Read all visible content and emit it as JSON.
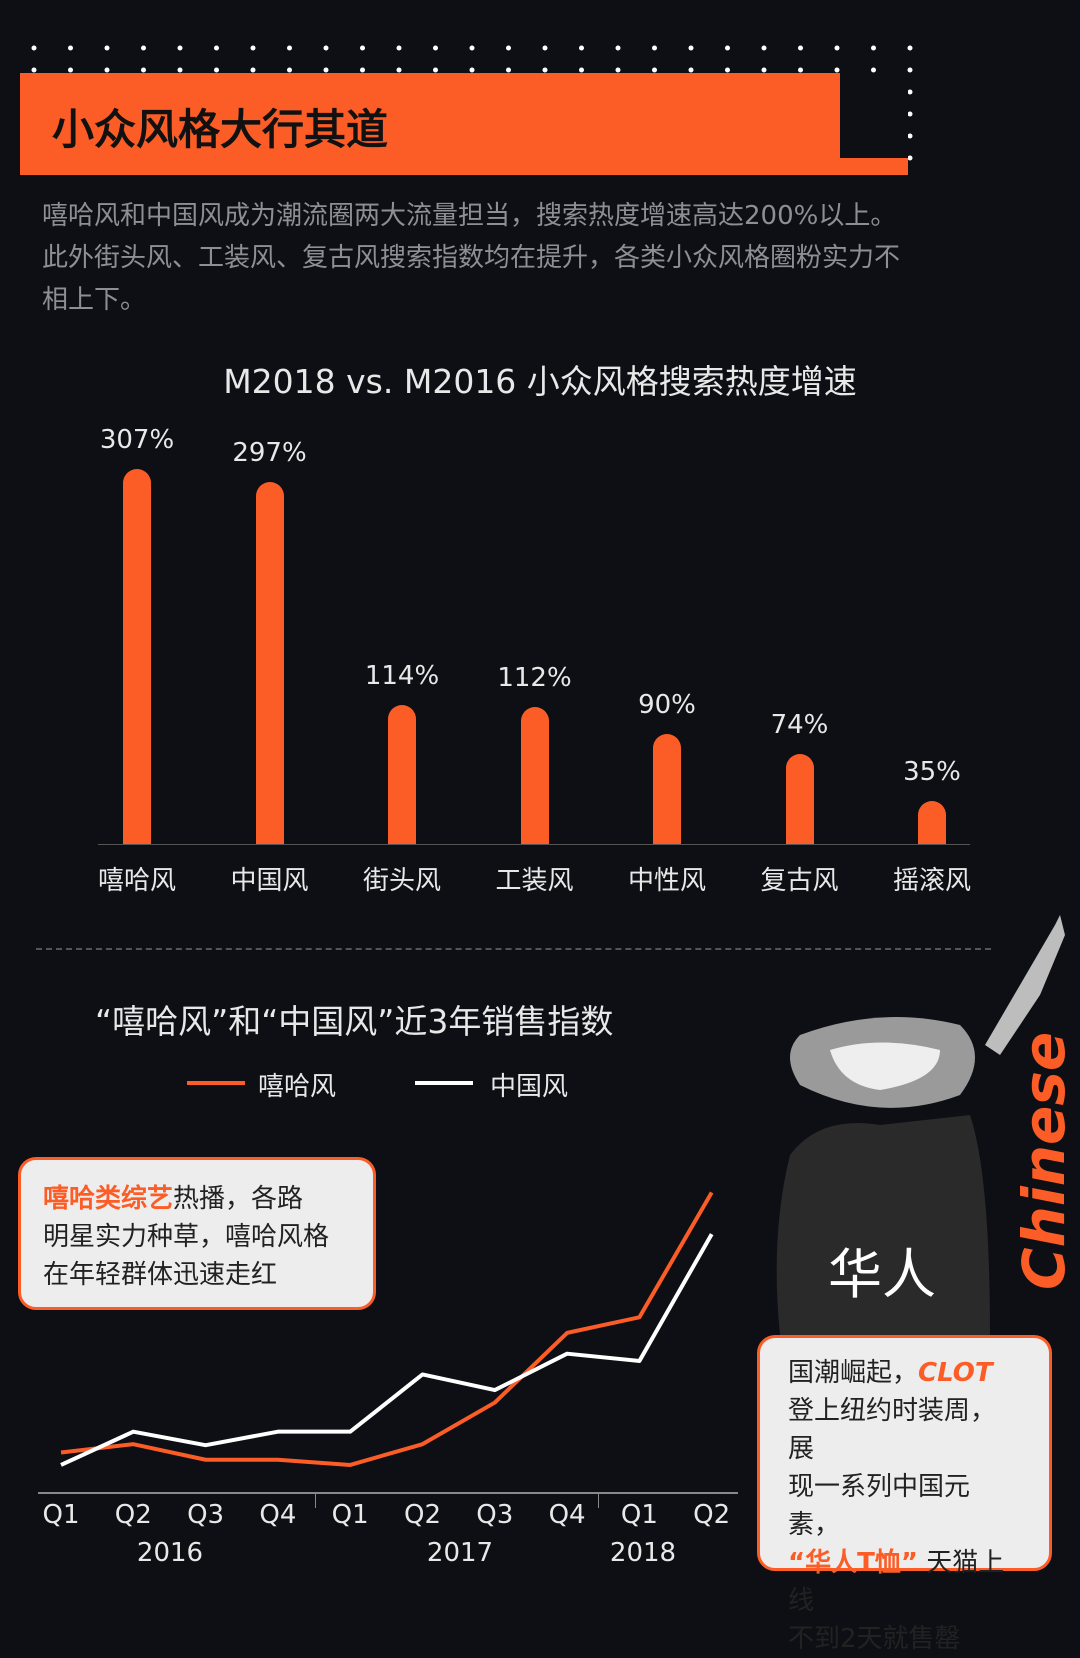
{
  "header": {
    "title": "小众风格大行其道"
  },
  "intro": [
    "嘻哈风和中国风成为潮流圈两大流量担当，搜索热度增速高达200%以上。",
    "此外街头风、工装风、复古风搜索指数均在提升，各类小众风格圈粉实力不",
    "相上下。"
  ],
  "colors": {
    "accent": "#fc5d26",
    "background": "#0d0f14",
    "secondary_line": "#ffffff"
  },
  "chart_data": [
    {
      "type": "bar",
      "title": "M2018 vs. M2016 小众风格搜索热度增速",
      "categories": [
        "嘻哈风",
        "中国风",
        "街头风",
        "工装风",
        "中性风",
        "复古风",
        "摇滚风"
      ],
      "values": [
        307,
        297,
        114,
        112,
        90,
        74,
        35
      ],
      "data_labels": [
        "307%",
        "297%",
        "114%",
        "112%",
        "90%",
        "74%",
        "35%"
      ],
      "grid": false
    },
    {
      "type": "line",
      "title": "“嘻哈风”和“中国风”近3年销售指数",
      "categories": [
        "Q1",
        "Q2",
        "Q3",
        "Q4",
        "Q1",
        "Q2",
        "Q3",
        "Q4",
        "Q1",
        "Q2"
      ],
      "years": [
        "2016",
        "2017",
        "2018"
      ],
      "series": [
        {
          "name": "嘻哈风",
          "color": "#fc5d26",
          "values": [
            38,
            46,
            31,
            31,
            26,
            46,
            86,
            153,
            168,
            288
          ]
        },
        {
          "name": "中国风",
          "color": "#ffffff",
          "values": [
            26,
            58,
            45,
            58,
            58,
            113,
            98,
            133,
            126,
            248
          ]
        }
      ],
      "legend": "top-left",
      "grid": false
    }
  ],
  "callout_left": {
    "highlight": "嘻哈类综艺",
    "text1": "热播，各路",
    "text2": "明星实力种草，嘻哈风格",
    "text3": "在年轻群体迅速走红"
  },
  "callout_right": {
    "l1a": "国潮崛起，",
    "l1b": "CLOT",
    "l2": "登上纽约时装周，展",
    "l3": "现一系列中国元素，",
    "l4a": "“华人T恤”",
    "l4b": "天猫上线",
    "l5": "不到2天就售罄"
  },
  "illustration": {
    "shirt_text": "华人",
    "side_text": "Chinese"
  }
}
